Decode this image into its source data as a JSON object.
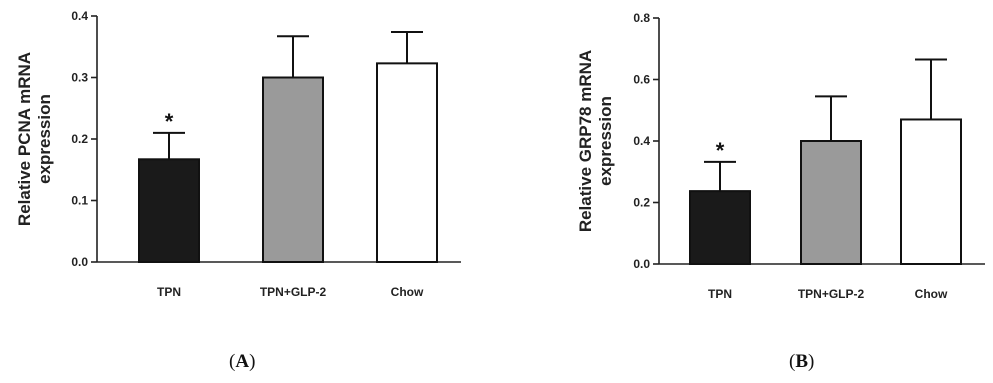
{
  "chart_data": [
    {
      "type": "bar",
      "panel_label": "A",
      "categories": [
        "TPN",
        "TPN+GLP-2",
        "Chow"
      ],
      "values": [
        0.167,
        0.3,
        0.323
      ],
      "errors": [
        0.043,
        0.067,
        0.051
      ],
      "bar_colors": [
        "#1a1a1a",
        "#9a9a9a",
        "#ffffff"
      ],
      "significance": [
        "*",
        "",
        ""
      ],
      "ylabel_lines": [
        "Relative PCNA mRNA",
        "expression"
      ],
      "ylim": [
        0,
        0.4
      ],
      "yticks": [
        "0.0",
        "0.1",
        "0.2",
        "0.3",
        "0.4"
      ],
      "grid": false
    },
    {
      "type": "bar",
      "panel_label": "B",
      "categories": [
        "TPN",
        "TPN+GLP-2",
        "Chow"
      ],
      "values": [
        0.237,
        0.4,
        0.47
      ],
      "errors": [
        0.095,
        0.145,
        0.195
      ],
      "bar_colors": [
        "#1a1a1a",
        "#9a9a9a",
        "#ffffff"
      ],
      "significance": [
        "*",
        "",
        ""
      ],
      "ylabel_lines": [
        "Relative GRP78 mRNA",
        "expression"
      ],
      "ylim": [
        0,
        0.8
      ],
      "yticks": [
        "0.0",
        "0.2",
        "0.4",
        "0.6",
        "0.8"
      ],
      "grid": false
    }
  ],
  "captions": [
    "A",
    "B"
  ]
}
